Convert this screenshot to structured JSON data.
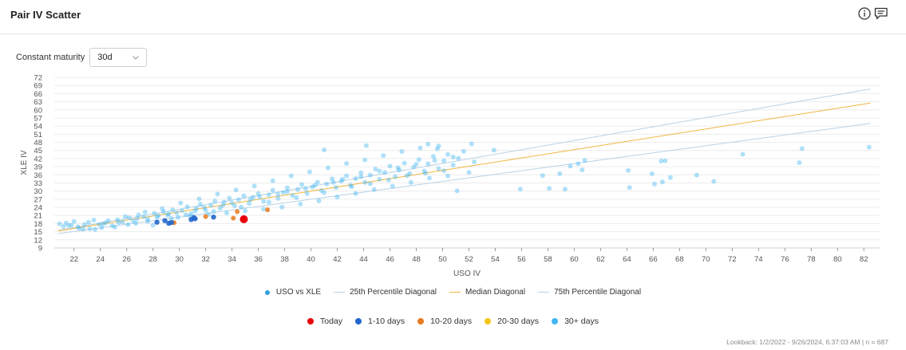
{
  "header": {
    "title": "Pair IV Scatter"
  },
  "controls": {
    "maturity_label": "Constant maturity",
    "maturity_value": "30d"
  },
  "footer": {
    "lookback": "Lookback: 1/2/2022 - 9/26/2024, 6:37:03 AM | n = 687"
  },
  "colors": {
    "today": "#e8000b",
    "d1_10": "#2266cc",
    "d10_20": "#e87a1f",
    "d20_30": "#f5c518",
    "d30_plus": "#41b6f2",
    "median": "#f0b640",
    "pctl": "#b7d3e6"
  },
  "chart_data": {
    "type": "scatter",
    "xlabel": "USO IV",
    "ylabel": "XLE IV",
    "xlim": [
      20.5,
      83.2
    ],
    "ylim": [
      9,
      72
    ],
    "xticks": [
      "22",
      "24",
      "26",
      "28",
      "30",
      "32",
      "34",
      "36",
      "38",
      "40",
      "42",
      "44",
      "46",
      "48",
      "50",
      "52",
      "54",
      "56",
      "58",
      "60",
      "62",
      "64",
      "66",
      "68",
      "70",
      "72",
      "74",
      "76",
      "78",
      "80",
      "82"
    ],
    "yticks": [
      "9",
      "12",
      "15",
      "18",
      "21",
      "24",
      "27",
      "30",
      "33",
      "36",
      "39",
      "42",
      "45",
      "48",
      "51",
      "54",
      "57",
      "60",
      "63",
      "66",
      "69",
      "72"
    ],
    "legend_series": [
      {
        "name": "USO vs XLE",
        "kind": "dot"
      },
      {
        "name": "25th Percentile Diagonal",
        "kind": "line"
      },
      {
        "name": "Median Diagonal",
        "kind": "line"
      },
      {
        "name": "75th Percentile Diagonal",
        "kind": "line"
      }
    ],
    "legend_age": [
      {
        "name": "Today",
        "color": "#e8000b"
      },
      {
        "name": "1-10 days",
        "color": "#2266cc"
      },
      {
        "name": "10-20 days",
        "color": "#e87a1f"
      },
      {
        "name": "20-30 days",
        "color": "#f5c518"
      },
      {
        "name": "30+ days",
        "color": "#41b6f2"
      }
    ],
    "diagonals": {
      "p75": [
        [
          20.8,
          15.5
        ],
        [
          82.5,
          67.7
        ]
      ],
      "median": [
        [
          20.8,
          15.3
        ],
        [
          82.5,
          62.5
        ]
      ],
      "p25": [
        [
          20.8,
          14.3
        ],
        [
          82.5,
          55.0
        ]
      ]
    },
    "today": [
      34.9,
      19.6
    ],
    "recent_1_10": [
      [
        28.3,
        18.5
      ],
      [
        28.9,
        19.1
      ],
      [
        29.2,
        18.1
      ],
      [
        29.4,
        18.4
      ],
      [
        30.9,
        19.5
      ],
      [
        31.1,
        20.2
      ],
      [
        31.2,
        19.8
      ],
      [
        32.6,
        20.4
      ]
    ],
    "recent_10_20": [
      [
        32.0,
        20.6
      ],
      [
        34.4,
        22.4
      ],
      [
        36.7,
        23.1
      ],
      [
        29.6,
        18.3
      ],
      [
        34.1,
        20.0
      ]
    ],
    "older_30_plus": [
      [
        20.9,
        17.9
      ],
      [
        21.4,
        18.2
      ],
      [
        21.8,
        17.4
      ],
      [
        22.3,
        16.8
      ],
      [
        22.8,
        17.6
      ],
      [
        23.2,
        16.1
      ],
      [
        23.6,
        15.8
      ],
      [
        24.1,
        16.5
      ],
      [
        24.4,
        18.3
      ],
      [
        24.9,
        17.2
      ],
      [
        25.3,
        19.4
      ],
      [
        25.7,
        18.6
      ],
      [
        26.2,
        20.1
      ],
      [
        26.5,
        19.0
      ],
      [
        26.9,
        21.2
      ],
      [
        27.3,
        20.5
      ],
      [
        27.6,
        19.7
      ],
      [
        28.1,
        21.8
      ],
      [
        28.4,
        20.9
      ],
      [
        28.8,
        22.4
      ],
      [
        29.2,
        21.6
      ],
      [
        29.5,
        23.1
      ],
      [
        29.9,
        20.3
      ],
      [
        30.2,
        22.8
      ],
      [
        30.6,
        24.2
      ],
      [
        30.9,
        21.7
      ],
      [
        31.3,
        23.6
      ],
      [
        31.6,
        25.1
      ],
      [
        32.0,
        22.9
      ],
      [
        32.4,
        24.8
      ],
      [
        32.7,
        26.3
      ],
      [
        33.1,
        23.7
      ],
      [
        33.4,
        25.9
      ],
      [
        33.8,
        27.4
      ],
      [
        34.2,
        24.6
      ],
      [
        34.5,
        26.8
      ],
      [
        34.9,
        28.2
      ],
      [
        35.3,
        25.4
      ],
      [
        35.6,
        27.7
      ],
      [
        36.0,
        29.1
      ],
      [
        36.4,
        26.2
      ],
      [
        36.8,
        28.6
      ],
      [
        37.1,
        30.3
      ],
      [
        37.5,
        27.3
      ],
      [
        37.9,
        29.5
      ],
      [
        38.2,
        31.2
      ],
      [
        38.6,
        28.4
      ],
      [
        39.0,
        30.6
      ],
      [
        39.3,
        32.4
      ],
      [
        39.7,
        29.1
      ],
      [
        40.1,
        31.5
      ],
      [
        40.5,
        33.3
      ],
      [
        40.8,
        30.2
      ],
      [
        41.2,
        32.6
      ],
      [
        41.6,
        34.5
      ],
      [
        41.9,
        31.3
      ],
      [
        42.3,
        33.7
      ],
      [
        42.7,
        35.6
      ],
      [
        43.0,
        32.1
      ],
      [
        43.4,
        34.6
      ],
      [
        43.8,
        36.8
      ],
      [
        44.1,
        33.2
      ],
      [
        44.5,
        35.9
      ],
      [
        44.9,
        38.1
      ],
      [
        45.2,
        34.4
      ],
      [
        45.6,
        36.9
      ],
      [
        46.0,
        39.2
      ],
      [
        46.4,
        35.3
      ],
      [
        46.7,
        37.8
      ],
      [
        47.1,
        40.3
      ],
      [
        47.5,
        36.5
      ],
      [
        47.8,
        38.9
      ],
      [
        48.2,
        41.6
      ],
      [
        48.6,
        37.4
      ],
      [
        48.9,
        40.1
      ],
      [
        49.3,
        42.8
      ],
      [
        49.7,
        38.3
      ],
      [
        50.1,
        41.2
      ],
      [
        50.4,
        43.5
      ],
      [
        50.8,
        39.6
      ],
      [
        51.2,
        42.1
      ],
      [
        51.6,
        44.7
      ],
      [
        52.0,
        36.9
      ],
      [
        52.4,
        40.8
      ],
      [
        21.2,
        16.9
      ],
      [
        22.0,
        18.8
      ],
      [
        22.7,
        15.9
      ],
      [
        23.5,
        19.3
      ],
      [
        24.2,
        17.9
      ],
      [
        25.1,
        16.7
      ],
      [
        25.9,
        20.6
      ],
      [
        26.7,
        18.1
      ],
      [
        27.4,
        22.3
      ],
      [
        28.0,
        17.4
      ],
      [
        28.7,
        23.5
      ],
      [
        29.4,
        19.9
      ],
      [
        30.1,
        25.6
      ],
      [
        30.8,
        20.8
      ],
      [
        31.5,
        27.1
      ],
      [
        32.2,
        21.4
      ],
      [
        32.9,
        28.9
      ],
      [
        33.6,
        21.9
      ],
      [
        34.3,
        30.4
      ],
      [
        35.0,
        22.7
      ],
      [
        35.7,
        31.9
      ],
      [
        36.4,
        23.3
      ],
      [
        37.1,
        33.8
      ],
      [
        37.8,
        24.1
      ],
      [
        38.5,
        35.6
      ],
      [
        39.2,
        25.2
      ],
      [
        39.9,
        37.1
      ],
      [
        40.6,
        26.4
      ],
      [
        41.3,
        38.6
      ],
      [
        42.0,
        27.8
      ],
      [
        42.7,
        40.2
      ],
      [
        43.4,
        29.1
      ],
      [
        44.1,
        41.5
      ],
      [
        44.8,
        30.6
      ],
      [
        45.5,
        43.1
      ],
      [
        46.2,
        31.8
      ],
      [
        46.9,
        44.6
      ],
      [
        47.6,
        33.2
      ],
      [
        48.3,
        45.9
      ],
      [
        49.0,
        34.8
      ],
      [
        49.7,
        46.7
      ],
      [
        50.4,
        35.6
      ],
      [
        51.1,
        30.1
      ],
      [
        41.0,
        45.2
      ],
      [
        44.2,
        46.8
      ],
      [
        48.9,
        47.3
      ],
      [
        49.6,
        45.6
      ],
      [
        52.2,
        47.4
      ],
      [
        53.9,
        45.1
      ],
      [
        21.6,
        17.3
      ],
      [
        22.4,
        16.3
      ],
      [
        23.1,
        18.5
      ],
      [
        23.9,
        17.7
      ],
      [
        24.6,
        19.1
      ],
      [
        25.4,
        18.4
      ],
      [
        26.1,
        17.6
      ],
      [
        26.8,
        19.8
      ],
      [
        27.6,
        18.8
      ],
      [
        28.3,
        20.4
      ],
      [
        29.1,
        21.1
      ],
      [
        29.8,
        22.0
      ],
      [
        30.5,
        21.3
      ],
      [
        31.2,
        22.6
      ],
      [
        31.9,
        23.9
      ],
      [
        32.6,
        22.5
      ],
      [
        33.3,
        24.7
      ],
      [
        34.0,
        25.6
      ],
      [
        34.7,
        24.1
      ],
      [
        35.4,
        26.9
      ],
      [
        36.1,
        27.8
      ],
      [
        36.8,
        25.9
      ],
      [
        37.5,
        28.8
      ],
      [
        38.2,
        29.7
      ],
      [
        38.9,
        27.6
      ],
      [
        39.6,
        30.9
      ],
      [
        40.3,
        32.1
      ],
      [
        41.0,
        29.4
      ],
      [
        41.7,
        33.2
      ],
      [
        42.4,
        34.4
      ],
      [
        43.1,
        31.6
      ],
      [
        43.8,
        35.3
      ],
      [
        44.5,
        32.7
      ],
      [
        45.2,
        37.4
      ],
      [
        45.9,
        34.1
      ],
      [
        46.6,
        38.6
      ],
      [
        47.3,
        35.7
      ],
      [
        48.0,
        39.9
      ],
      [
        48.7,
        36.6
      ],
      [
        49.4,
        41.3
      ],
      [
        50.1,
        37.5
      ],
      [
        50.8,
        42.6
      ],
      [
        55.9,
        30.7
      ],
      [
        57.6,
        35.7
      ],
      [
        58.1,
        31.0
      ],
      [
        58.9,
        36.4
      ],
      [
        59.3,
        30.7
      ],
      [
        59.7,
        39.2
      ],
      [
        60.3,
        40.1
      ],
      [
        60.6,
        37.8
      ],
      [
        60.8,
        41.3
      ],
      [
        64.1,
        37.6
      ],
      [
        64.2,
        31.3
      ],
      [
        65.9,
        36.4
      ],
      [
        66.1,
        32.6
      ],
      [
        66.6,
        41.1
      ],
      [
        66.7,
        33.4
      ],
      [
        66.9,
        41.2
      ],
      [
        67.3,
        35.0
      ],
      [
        69.3,
        35.9
      ],
      [
        70.6,
        33.6
      ],
      [
        72.8,
        43.6
      ],
      [
        77.1,
        40.5
      ],
      [
        77.3,
        45.7
      ],
      [
        82.4,
        46.2
      ]
    ]
  }
}
